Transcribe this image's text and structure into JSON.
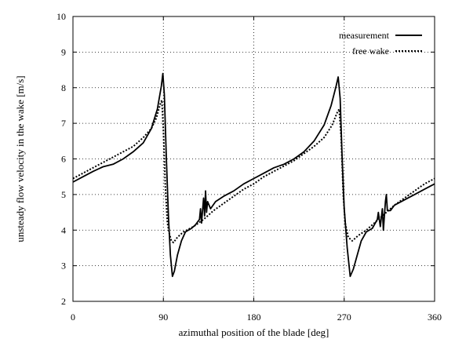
{
  "chart_data": {
    "type": "line",
    "xlabel": "azimuthal position of the blade [deg]",
    "ylabel": "unsteady flow velocity in the wake [m/s]",
    "xlim": [
      0,
      360
    ],
    "ylim": [
      2,
      10
    ],
    "x_ticks": [
      0,
      90,
      180,
      270,
      360
    ],
    "y_ticks": [
      2,
      3,
      4,
      5,
      6,
      7,
      8,
      9,
      10
    ],
    "vertical_gridlines": [
      90,
      180,
      270
    ],
    "horizontal_gridlines": [
      3,
      4,
      5,
      6,
      7,
      8,
      9
    ],
    "grid": "dotted",
    "legend_position": "top-right",
    "series": [
      {
        "name": "measurement",
        "style": "solid",
        "color": "#000000",
        "points": [
          [
            0,
            5.35
          ],
          [
            10,
            5.5
          ],
          [
            20,
            5.65
          ],
          [
            30,
            5.78
          ],
          [
            40,
            5.85
          ],
          [
            50,
            6.0
          ],
          [
            60,
            6.2
          ],
          [
            70,
            6.45
          ],
          [
            78,
            6.85
          ],
          [
            84,
            7.4
          ],
          [
            88,
            8.05
          ],
          [
            89.5,
            8.4
          ],
          [
            91,
            7.8
          ],
          [
            93,
            6.0
          ],
          [
            95,
            4.4
          ],
          [
            97,
            3.3
          ],
          [
            99,
            2.7
          ],
          [
            101,
            2.85
          ],
          [
            104,
            3.3
          ],
          [
            108,
            3.7
          ],
          [
            112,
            3.95
          ],
          [
            118,
            4.05
          ],
          [
            122,
            4.15
          ],
          [
            126,
            4.3
          ],
          [
            127,
            4.6
          ],
          [
            128,
            4.2
          ],
          [
            130,
            4.9
          ],
          [
            131,
            4.4
          ],
          [
            132,
            5.1
          ],
          [
            133,
            4.5
          ],
          [
            134,
            4.8
          ],
          [
            137,
            4.6
          ],
          [
            142,
            4.8
          ],
          [
            150,
            4.95
          ],
          [
            160,
            5.1
          ],
          [
            170,
            5.3
          ],
          [
            180,
            5.45
          ],
          [
            190,
            5.6
          ],
          [
            200,
            5.75
          ],
          [
            210,
            5.85
          ],
          [
            220,
            6.0
          ],
          [
            230,
            6.2
          ],
          [
            240,
            6.5
          ],
          [
            250,
            6.95
          ],
          [
            257,
            7.5
          ],
          [
            262,
            8.05
          ],
          [
            264,
            8.3
          ],
          [
            266,
            7.7
          ],
          [
            268,
            6.0
          ],
          [
            270,
            4.6
          ],
          [
            273,
            3.5
          ],
          [
            276,
            2.7
          ],
          [
            279,
            2.9
          ],
          [
            283,
            3.3
          ],
          [
            287,
            3.7
          ],
          [
            292,
            3.95
          ],
          [
            298,
            4.05
          ],
          [
            303,
            4.3
          ],
          [
            304,
            4.5
          ],
          [
            306,
            4.1
          ],
          [
            308,
            4.6
          ],
          [
            309,
            4.0
          ],
          [
            311,
            4.8
          ],
          [
            312,
            5.0
          ],
          [
            313,
            4.55
          ],
          [
            316,
            4.55
          ],
          [
            320,
            4.7
          ],
          [
            330,
            4.85
          ],
          [
            340,
            5.0
          ],
          [
            350,
            5.15
          ],
          [
            360,
            5.3
          ]
        ]
      },
      {
        "name": "free wake",
        "style": "dotted",
        "color": "#000000",
        "points": [
          [
            0,
            5.45
          ],
          [
            10,
            5.6
          ],
          [
            20,
            5.75
          ],
          [
            30,
            5.9
          ],
          [
            40,
            6.05
          ],
          [
            50,
            6.2
          ],
          [
            60,
            6.35
          ],
          [
            70,
            6.6
          ],
          [
            78,
            6.85
          ],
          [
            83,
            7.15
          ],
          [
            87,
            7.55
          ],
          [
            88.5,
            7.65
          ],
          [
            90,
            6.8
          ],
          [
            92,
            5.2
          ],
          [
            94,
            4.2
          ],
          [
            96,
            3.9
          ],
          [
            98,
            3.7
          ],
          [
            100,
            3.65
          ],
          [
            104,
            3.8
          ],
          [
            110,
            3.95
          ],
          [
            120,
            4.1
          ],
          [
            130,
            4.3
          ],
          [
            140,
            4.55
          ],
          [
            150,
            4.75
          ],
          [
            160,
            4.95
          ],
          [
            170,
            5.15
          ],
          [
            180,
            5.3
          ],
          [
            190,
            5.5
          ],
          [
            200,
            5.65
          ],
          [
            210,
            5.8
          ],
          [
            220,
            5.95
          ],
          [
            230,
            6.15
          ],
          [
            240,
            6.35
          ],
          [
            250,
            6.6
          ],
          [
            258,
            6.95
          ],
          [
            263,
            7.3
          ],
          [
            265,
            7.4
          ],
          [
            267,
            6.6
          ],
          [
            269,
            5.0
          ],
          [
            271,
            4.2
          ],
          [
            274,
            3.8
          ],
          [
            278,
            3.7
          ],
          [
            284,
            3.85
          ],
          [
            292,
            4.0
          ],
          [
            300,
            4.2
          ],
          [
            310,
            4.45
          ],
          [
            320,
            4.7
          ],
          [
            330,
            4.9
          ],
          [
            340,
            5.1
          ],
          [
            350,
            5.3
          ],
          [
            360,
            5.45
          ]
        ]
      }
    ]
  }
}
